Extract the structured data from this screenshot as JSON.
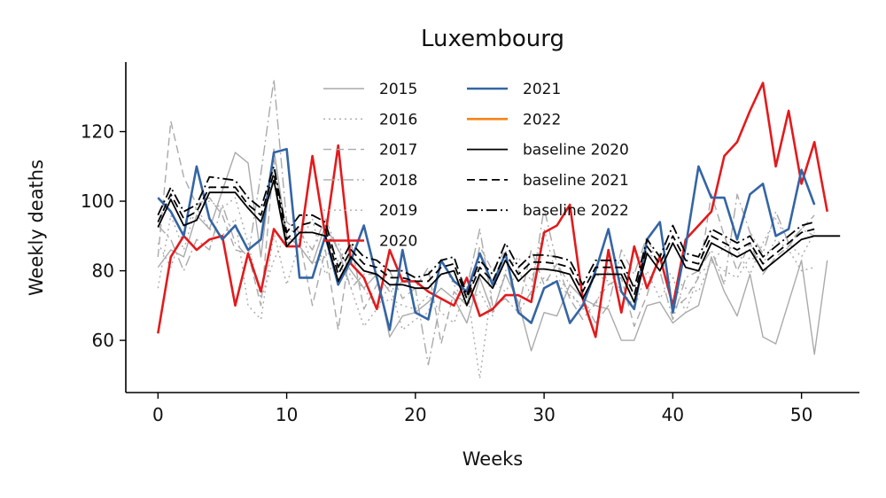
{
  "chart_data": {
    "type": "line",
    "title": "Luxembourg",
    "xlabel": "Weeks",
    "ylabel": "Weekly deaths",
    "xlim": [
      -2.5,
      54.5
    ],
    "ylim": [
      45,
      140
    ],
    "xticks": [
      0,
      10,
      20,
      30,
      40,
      50
    ],
    "yticks": [
      60,
      80,
      100,
      120
    ],
    "grid": false,
    "legend_position": "top-center",
    "series": [
      {
        "name": "2015",
        "color": "#aaaaaa",
        "dash": "solid",
        "width": 1.4,
        "y": [
          81,
          86,
          84,
          96,
          92,
          103,
          114,
          111,
          84,
          115,
          90,
          87,
          82,
          93,
          86,
          80,
          75,
          79,
          61,
          67,
          68,
          71,
          75,
          72,
          65,
          78,
          68,
          79,
          71,
          57,
          68,
          67,
          76,
          72,
          70,
          69,
          60,
          60,
          70,
          71,
          65,
          68,
          70,
          84,
          74,
          67,
          79,
          61,
          59,
          71,
          83,
          56,
          83
        ]
      },
      {
        "name": "2016",
        "color": "#aaaaaa",
        "dash": "dotted",
        "width": 1.4,
        "y": [
          75,
          96,
          86,
          99,
          100,
          98,
          101,
          88,
          72,
          83,
          91,
          92,
          82,
          84,
          88,
          78,
          75,
          69,
          72,
          70,
          69,
          73,
          68,
          65,
          75,
          49,
          77,
          74,
          80,
          73,
          78,
          76,
          73,
          70,
          79,
          77,
          74,
          70,
          85,
          83,
          78,
          75,
          74,
          83,
          80,
          78,
          84,
          82,
          89,
          86,
          80,
          81
        ]
      },
      {
        "name": "2017",
        "color": "#aaaaaa",
        "dash": "dashed",
        "width": 1.4,
        "y": [
          84,
          123,
          107,
          99,
          101,
          96,
          86,
          85,
          70,
          112,
          88,
          89,
          70,
          86,
          63,
          88,
          69,
          76,
          80,
          72,
          75,
          81,
          59,
          74,
          70,
          87,
          80,
          86,
          69,
          86,
          76,
          82,
          72,
          66,
          71,
          76,
          78,
          64,
          73,
          85,
          69,
          72,
          78,
          102,
          90,
          80,
          88,
          79,
          84,
          87,
          92,
          96
        ]
      },
      {
        "name": "2018",
        "color": "#aaaaaa",
        "dash": "dashdot",
        "width": 1.4,
        "y": [
          93,
          89,
          80,
          89,
          86,
          99,
          88,
          84,
          108,
          135,
          94,
          91,
          86,
          95,
          86,
          75,
          79,
          79,
          74,
          77,
          75,
          53,
          72,
          70,
          75,
          92,
          70,
          72,
          68,
          74,
          98,
          82,
          76,
          72,
          65,
          70,
          86,
          79,
          90,
          80,
          66,
          78,
          80,
          86,
          76,
          102,
          91,
          85,
          97,
          88,
          92,
          90
        ]
      },
      {
        "name": "2019",
        "color": "#aaaaaa",
        "dash": "dotted",
        "width": 1.4,
        "y": [
          88,
          81,
          92,
          98,
          92,
          90,
          95,
          70,
          66,
          91,
          76,
          88,
          95,
          79,
          83,
          75,
          64,
          69,
          76,
          63,
          66,
          68,
          83,
          76,
          70,
          74,
          67,
          80,
          84,
          77,
          92,
          78,
          74,
          69,
          70,
          80,
          74,
          69,
          80,
          72,
          78,
          68,
          79,
          82,
          87,
          86,
          79,
          88,
          95,
          88,
          84,
          91
        ]
      },
      {
        "name": "2020",
        "color": "#e31a1c",
        "dash": "solid",
        "width": 2.6,
        "y": [
          62,
          84,
          90,
          86,
          89,
          90,
          70,
          85,
          74,
          92,
          87,
          87,
          113,
          90,
          116,
          82,
          78,
          69,
          86,
          77,
          77,
          74,
          72,
          70,
          78,
          67,
          69,
          73,
          73,
          71,
          91,
          93,
          99,
          72,
          61,
          86,
          68,
          87,
          75,
          84,
          70,
          89,
          93,
          97,
          113,
          117,
          126,
          134,
          110,
          126,
          105,
          117,
          97
        ]
      },
      {
        "name": "2021",
        "color": "#3465a4",
        "dash": "solid",
        "width": 2.6,
        "y": [
          101,
          97,
          90,
          110,
          95,
          89,
          93,
          86,
          89,
          114,
          115,
          78,
          78,
          90,
          76,
          83,
          93,
          78,
          63,
          86,
          68,
          66,
          83,
          77,
          74,
          85,
          76,
          85,
          68,
          65,
          75,
          77,
          65,
          70,
          80,
          92,
          74,
          69,
          89,
          94,
          68,
          87,
          110,
          101,
          101,
          89,
          102,
          105,
          90,
          92,
          109,
          99
        ]
      },
      {
        "name": "2022",
        "color": "#f58518",
        "dash": "solid",
        "width": 2.6,
        "y": []
      },
      {
        "name": "baseline 2020",
        "color": "#000000",
        "dash": "solid",
        "width": 1.8,
        "y": [
          92.5,
          100.5,
          93,
          94.5,
          102.5,
          102.5,
          102.5,
          98,
          94,
          106,
          87,
          91,
          91,
          90,
          77,
          84,
          80,
          79,
          76,
          76,
          75,
          75,
          79,
          80,
          70,
          79,
          75,
          83,
          77,
          80.5,
          80.5,
          80,
          79,
          72,
          79,
          79,
          79,
          71,
          85,
          80,
          88,
          81,
          80,
          88,
          86,
          84,
          86,
          80,
          83,
          86,
          89,
          90,
          90,
          90
        ]
      },
      {
        "name": "baseline 2021",
        "color": "#000000",
        "dash": "dashed",
        "width": 1.8,
        "y": [
          94,
          102,
          95,
          97,
          104,
          104,
          104,
          99,
          96,
          108,
          89,
          93,
          94,
          92,
          79,
          86,
          82,
          81,
          78,
          78,
          77,
          77,
          81,
          82,
          72,
          81,
          77,
          85,
          79,
          82.5,
          82.5,
          82,
          81,
          74,
          81,
          81,
          81,
          73,
          87,
          82,
          90,
          83,
          82,
          90,
          88,
          86,
          88,
          82,
          85,
          88,
          91,
          92
        ]
      },
      {
        "name": "baseline 2022",
        "color": "#000000",
        "dash": "dashdot",
        "width": 1.8,
        "y": [
          96,
          104,
          97,
          99,
          107,
          106.5,
          106,
          101,
          98,
          110,
          91,
          96,
          96,
          94,
          81,
          88,
          84,
          83,
          80,
          80,
          78,
          79,
          83,
          84,
          73,
          83,
          79,
          88,
          81,
          84.5,
          84.5,
          84,
          83,
          76,
          83,
          83,
          83,
          75,
          89,
          84,
          93,
          85,
          84,
          92,
          90,
          88,
          90,
          84,
          87,
          90,
          93,
          94
        ]
      }
    ]
  }
}
